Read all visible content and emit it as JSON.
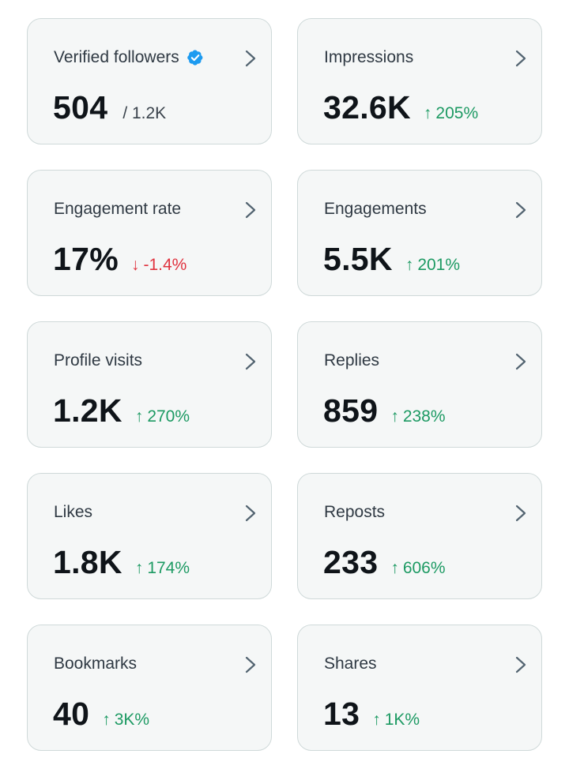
{
  "colors": {
    "card_background": "#f5f7f7",
    "card_border": "#cfd9d9",
    "label": "#2f3943",
    "value": "#0f1419",
    "positive": "#1d9a63",
    "negative": "#e0333f",
    "verified_badge": "#1d9bf0",
    "chevron": "#536471"
  },
  "cards": [
    {
      "label": "Verified followers",
      "value": "504",
      "total": "/ 1.2K",
      "verified_icon": "verified-badge-icon"
    },
    {
      "label": "Impressions",
      "value": "32.6K",
      "change": "205%",
      "direction": "up",
      "arrow": "↑"
    },
    {
      "label": "Engagement rate",
      "value": "17%",
      "change": "-1.4%",
      "direction": "down",
      "arrow": "↓"
    },
    {
      "label": "Engagements",
      "value": "5.5K",
      "change": "201%",
      "direction": "up",
      "arrow": "↑"
    },
    {
      "label": "Profile visits",
      "value": "1.2K",
      "change": "270%",
      "direction": "up",
      "arrow": "↑"
    },
    {
      "label": "Replies",
      "value": "859",
      "change": "238%",
      "direction": "up",
      "arrow": "↑"
    },
    {
      "label": "Likes",
      "value": "1.8K",
      "change": "174%",
      "direction": "up",
      "arrow": "↑"
    },
    {
      "label": "Reposts",
      "value": "233",
      "change": "606%",
      "direction": "up",
      "arrow": "↑"
    },
    {
      "label": "Bookmarks",
      "value": "40",
      "change": "3K%",
      "direction": "up",
      "arrow": "↑"
    },
    {
      "label": "Shares",
      "value": "13",
      "change": "1K%",
      "direction": "up",
      "arrow": "↑"
    }
  ]
}
